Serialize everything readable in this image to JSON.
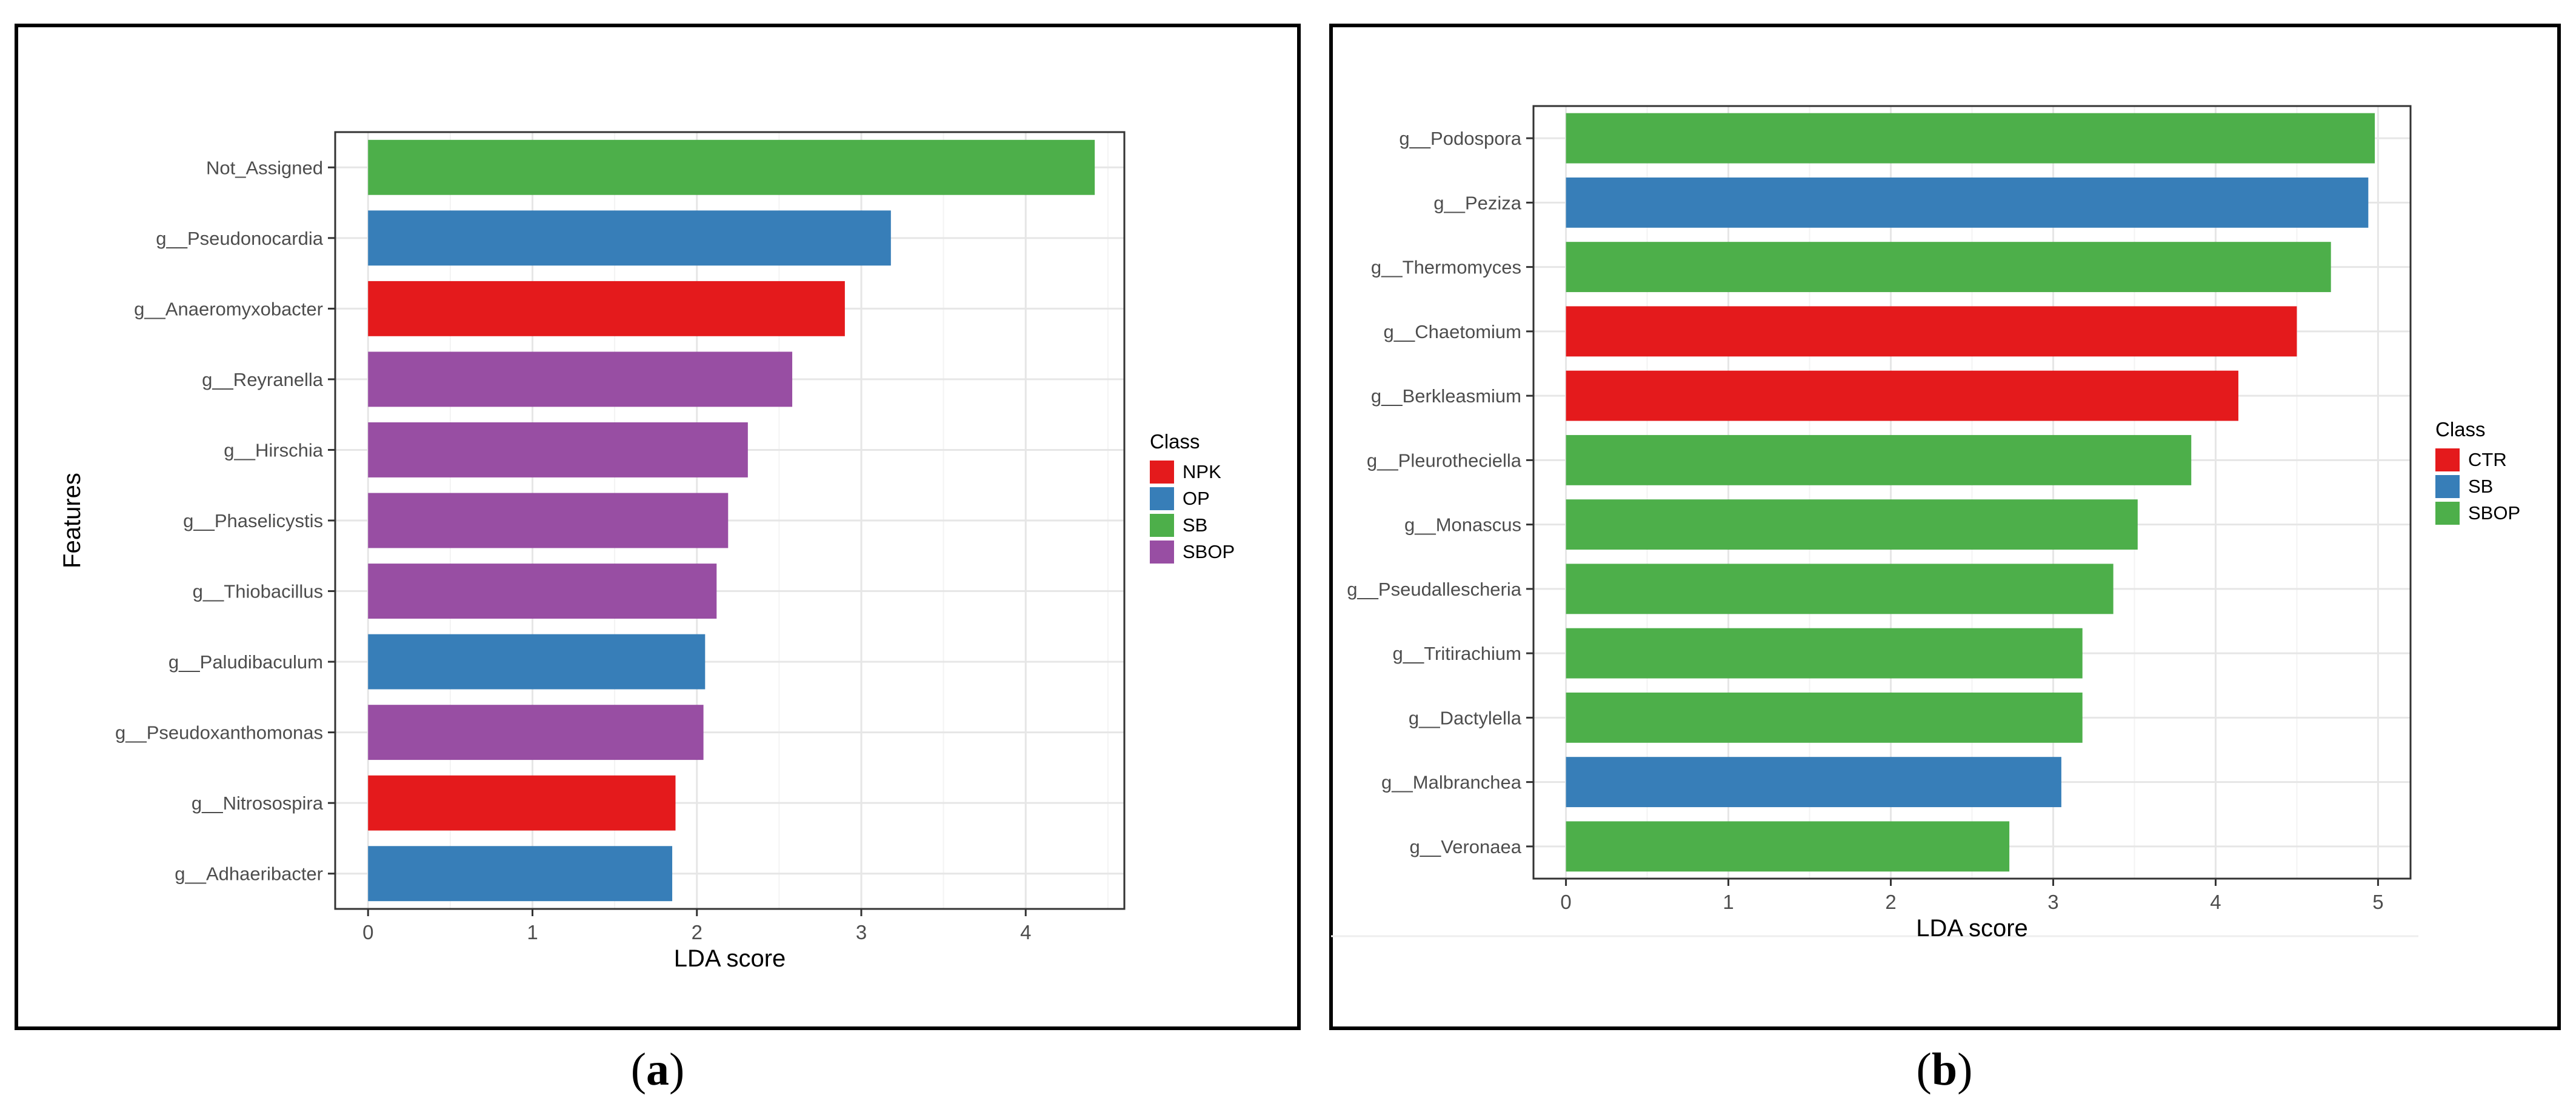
{
  "charts": [
    {
      "caption_letter": "a",
      "chart_data": {
        "type": "bar",
        "orientation": "horizontal",
        "xlabel": "LDA score",
        "ylabel": "Features",
        "xlim": [
          -0.2,
          4.6
        ],
        "xticks": [
          0,
          1,
          2,
          3,
          4
        ],
        "grid": true,
        "legend_title": "Class",
        "legend_position": "right",
        "legend": [
          {
            "label": "NPK",
            "color": "#e41a1c"
          },
          {
            "label": "OP",
            "color": "#377eb8"
          },
          {
            "label": "SB",
            "color": "#4daf4a"
          },
          {
            "label": "SBOP",
            "color": "#984ea3"
          }
        ],
        "bars": [
          {
            "feature": "Not_Assigned",
            "value": 4.42,
            "class": "SB"
          },
          {
            "feature": "g__Pseudonocardia",
            "value": 3.18,
            "class": "OP"
          },
          {
            "feature": "g__Anaeromyxobacter",
            "value": 2.9,
            "class": "NPK"
          },
          {
            "feature": "g__Reyranella",
            "value": 2.58,
            "class": "SBOP"
          },
          {
            "feature": "g__Hirschia",
            "value": 2.31,
            "class": "SBOP"
          },
          {
            "feature": "g__Phaselicystis",
            "value": 2.19,
            "class": "SBOP"
          },
          {
            "feature": "g__Thiobacillus",
            "value": 2.12,
            "class": "SBOP"
          },
          {
            "feature": "g__Paludibaculum",
            "value": 2.05,
            "class": "OP"
          },
          {
            "feature": "g__Pseudoxanthomonas",
            "value": 2.04,
            "class": "SBOP"
          },
          {
            "feature": "g__Nitrosospira",
            "value": 1.87,
            "class": "NPK"
          },
          {
            "feature": "g__Adhaeribacter",
            "value": 1.85,
            "class": "OP"
          }
        ]
      }
    },
    {
      "caption_letter": "b",
      "chart_data": {
        "type": "bar",
        "orientation": "horizontal",
        "xlabel": "LDA score",
        "ylabel": "",
        "xlim": [
          -0.2,
          5.2
        ],
        "xticks": [
          0,
          1,
          2,
          3,
          4,
          5
        ],
        "grid": true,
        "legend_title": "Class",
        "legend_position": "right",
        "legend": [
          {
            "label": "CTR",
            "color": "#e41a1c"
          },
          {
            "label": "SB",
            "color": "#377eb8"
          },
          {
            "label": "SBOP",
            "color": "#4daf4a"
          }
        ],
        "bars": [
          {
            "feature": "g__Podospora",
            "value": 4.98,
            "class": "SBOP"
          },
          {
            "feature": "g__Peziza",
            "value": 4.94,
            "class": "SB"
          },
          {
            "feature": "g__Thermomyces",
            "value": 4.71,
            "class": "SBOP"
          },
          {
            "feature": "g__Chaetomium",
            "value": 4.5,
            "class": "CTR"
          },
          {
            "feature": "g__Berkleasmium",
            "value": 4.14,
            "class": "CTR"
          },
          {
            "feature": "g__Pleurotheciella",
            "value": 3.85,
            "class": "SBOP"
          },
          {
            "feature": "g__Monascus",
            "value": 3.52,
            "class": "SBOP"
          },
          {
            "feature": "g__Pseudallescheria",
            "value": 3.37,
            "class": "SBOP"
          },
          {
            "feature": "g__Tritirachium",
            "value": 3.18,
            "class": "SBOP"
          },
          {
            "feature": "g__Dactylella",
            "value": 3.18,
            "class": "SBOP"
          },
          {
            "feature": "g__Malbranchea",
            "value": 3.05,
            "class": "SB"
          },
          {
            "feature": "g__Veronaea",
            "value": 2.73,
            "class": "SBOP"
          }
        ]
      }
    }
  ]
}
